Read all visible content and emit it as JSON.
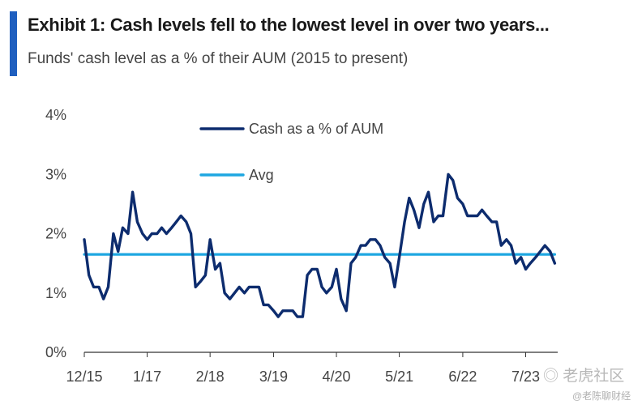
{
  "header": {
    "title": "Exhibit 1: Cash levels fell to the lowest level in over two years...",
    "subtitle": "Funds' cash level as a % of their AUM (2015 to present)",
    "accent_color": "#1f5fbf"
  },
  "watermark": {
    "icon": "tiger-logo-icon",
    "main": "老虎社区",
    "sub": "@老陈聊财经"
  },
  "chart_data": {
    "type": "line",
    "title": "",
    "xlabel": "",
    "ylabel": "",
    "ylim": [
      0,
      4
    ],
    "xlim": [
      2015.92,
      2024.05
    ],
    "y_ticks": [
      {
        "value": 0,
        "label": "0%"
      },
      {
        "value": 1,
        "label": "1%"
      },
      {
        "value": 2,
        "label": "2%"
      },
      {
        "value": 3,
        "label": "3%"
      },
      {
        "value": 4,
        "label": "4%"
      }
    ],
    "x_ticks": [
      {
        "value": 2015.92,
        "label": "12/15"
      },
      {
        "value": 2017.0,
        "label": "1/17"
      },
      {
        "value": 2018.08,
        "label": "2/18"
      },
      {
        "value": 2019.17,
        "label": "3/19"
      },
      {
        "value": 2020.25,
        "label": "4/20"
      },
      {
        "value": 2021.33,
        "label": "5/21"
      },
      {
        "value": 2022.42,
        "label": "6/22"
      },
      {
        "value": 2023.5,
        "label": "7/23"
      }
    ],
    "grid": false,
    "legend_position": "top-center",
    "series": [
      {
        "name": "Cash as a % of AUM",
        "color": "#0d2c6e",
        "x": [
          2015.92,
          2016.0,
          2016.08,
          2016.17,
          2016.25,
          2016.33,
          2016.42,
          2016.5,
          2016.58,
          2016.67,
          2016.75,
          2016.83,
          2016.92,
          2017.0,
          2017.08,
          2017.17,
          2017.25,
          2017.33,
          2017.42,
          2017.5,
          2017.58,
          2017.67,
          2017.75,
          2017.83,
          2017.92,
          2018.0,
          2018.08,
          2018.17,
          2018.25,
          2018.33,
          2018.42,
          2018.5,
          2018.58,
          2018.67,
          2018.75,
          2018.83,
          2018.92,
          2019.0,
          2019.08,
          2019.17,
          2019.25,
          2019.33,
          2019.42,
          2019.5,
          2019.58,
          2019.67,
          2019.75,
          2019.83,
          2019.92,
          2020.0,
          2020.08,
          2020.17,
          2020.25,
          2020.33,
          2020.42,
          2020.5,
          2020.58,
          2020.67,
          2020.75,
          2020.83,
          2020.92,
          2021.0,
          2021.08,
          2021.17,
          2021.25,
          2021.33,
          2021.42,
          2021.5,
          2021.58,
          2021.67,
          2021.75,
          2021.83,
          2021.92,
          2022.0,
          2022.08,
          2022.17,
          2022.25,
          2022.33,
          2022.42,
          2022.5,
          2022.58,
          2022.67,
          2022.75,
          2022.83,
          2022.92,
          2023.0,
          2023.08,
          2023.17,
          2023.25,
          2023.33,
          2023.42,
          2023.5,
          2023.58,
          2023.67,
          2023.75,
          2023.83,
          2023.92,
          2024.0
        ],
        "values": [
          1.9,
          1.3,
          1.1,
          1.1,
          0.9,
          1.1,
          2.0,
          1.7,
          2.1,
          2.0,
          2.7,
          2.2,
          2.0,
          1.9,
          2.0,
          2.0,
          2.1,
          2.0,
          2.1,
          2.2,
          2.3,
          2.2,
          2.0,
          1.1,
          1.2,
          1.3,
          1.9,
          1.4,
          1.5,
          1.0,
          0.9,
          1.0,
          1.1,
          1.0,
          1.1,
          1.1,
          1.1,
          0.8,
          0.8,
          0.7,
          0.6,
          0.7,
          0.7,
          0.7,
          0.6,
          0.6,
          1.3,
          1.4,
          1.4,
          1.1,
          1.0,
          1.1,
          1.4,
          0.9,
          0.7,
          1.5,
          1.6,
          1.8,
          1.8,
          1.9,
          1.9,
          1.8,
          1.6,
          1.5,
          1.1,
          1.6,
          2.2,
          2.6,
          2.4,
          2.1,
          2.5,
          2.7,
          2.2,
          2.3,
          2.3,
          3.0,
          2.9,
          2.6,
          2.5,
          2.3,
          2.3,
          2.3,
          2.4,
          2.3,
          2.2,
          2.2,
          1.8,
          1.9,
          1.8,
          1.5,
          1.6,
          1.4,
          1.5,
          1.6,
          1.7,
          1.8,
          1.7,
          1.5
        ]
      },
      {
        "name": "Avg",
        "color": "#1ea7e1",
        "x": [
          2015.92,
          2024.0
        ],
        "values": [
          1.65,
          1.65
        ]
      }
    ]
  }
}
